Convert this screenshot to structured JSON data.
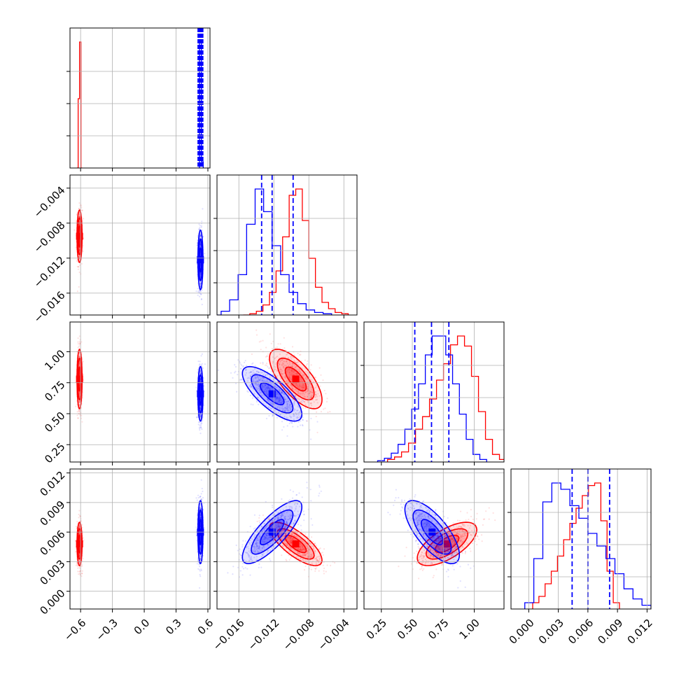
{
  "chart_data": {
    "type": "corner",
    "title": "",
    "grid": true,
    "parameters": [
      {
        "range": [
          -0.7,
          0.62
        ],
        "ticks": [
          -0.6,
          -0.3,
          0.0,
          0.3,
          0.6
        ],
        "tick_labels": [
          "−0.6",
          "−0.3",
          "0.0",
          "0.3",
          "0.6"
        ]
      },
      {
        "range": [
          -0.0185,
          -0.0025
        ],
        "ticks": [
          -0.016,
          -0.012,
          -0.008,
          -0.004
        ],
        "tick_labels": [
          "−0.016",
          "−0.012",
          "−0.008",
          "−0.004"
        ]
      },
      {
        "range": [
          0.11,
          1.24
        ],
        "ticks": [
          0.25,
          0.5,
          0.75,
          1.0
        ],
        "tick_labels": [
          "0.25",
          "0.50",
          "0.75",
          "1.00"
        ]
      },
      {
        "range": [
          -0.0018,
          0.0124
        ],
        "ticks": [
          0.0,
          0.003,
          0.006,
          0.009,
          0.012
        ],
        "tick_labels": [
          "0.000",
          "0.003",
          "0.006",
          "0.009",
          "0.012"
        ]
      }
    ],
    "series": [
      {
        "color": "#ff0000",
        "centers": [
          -0.61,
          -0.0095,
          0.78,
          0.0048
        ],
        "spreads": [
          0.012,
          0.0015,
          0.12,
          0.0011
        ],
        "correlations": {
          "0-1": 0.0,
          "0-2": 0.0,
          "0-3": 0.0,
          "1-2": -0.7,
          "1-3": -0.75,
          "2-3": 0.65
        },
        "histograms": [
          [
            0.0,
            0.55,
            1.0,
            0.0
          ],
          [
            0.0,
            0.01,
            0.03,
            0.08,
            0.18,
            0.35,
            0.62,
            0.95,
            1.0,
            0.75,
            0.45,
            0.22,
            0.1,
            0.05,
            0.02,
            0.01
          ],
          [
            0.02,
            0.04,
            0.08,
            0.15,
            0.26,
            0.36,
            0.5,
            0.65,
            0.78,
            0.93,
            1.0,
            0.92,
            0.68,
            0.4,
            0.18,
            0.06,
            0.02
          ],
          [
            0.05,
            0.1,
            0.2,
            0.3,
            0.42,
            0.55,
            0.68,
            0.8,
            0.9,
            0.98,
            1.0,
            0.7,
            0.3,
            0.05
          ]
        ]
      },
      {
        "color": "#0000ff",
        "centers": [
          0.53,
          -0.0122,
          0.66,
          0.006
        ],
        "spreads": [
          0.012,
          0.0017,
          0.11,
          0.0016
        ],
        "correlations": {
          "0-1": 0.0,
          "0-2": 0.0,
          "0-3": 0.0,
          "1-2": -0.75,
          "1-3": 0.8,
          "2-3": -0.72
        },
        "histograms": [
          [
            0.0,
            1.0,
            0.05
          ],
          [
            0.0,
            0.03,
            0.12,
            0.32,
            0.72,
            1.0,
            0.82,
            0.55,
            0.32,
            0.18,
            0.09,
            0.04,
            0.02,
            0.01
          ],
          [
            0.01,
            0.03,
            0.07,
            0.14,
            0.26,
            0.42,
            0.62,
            0.85,
            1.0,
            1.0,
            0.85,
            0.62,
            0.38,
            0.18,
            0.06,
            0.02
          ],
          [
            0.05,
            0.4,
            0.85,
            1.0,
            0.95,
            0.82,
            0.72,
            0.6,
            0.5,
            0.4,
            0.28,
            0.16,
            0.08,
            0.03
          ]
        ]
      }
    ],
    "quantile_lines": {
      "color": "#0000ff",
      "style": "dashed",
      "values": [
        [
          0.515,
          0.53,
          0.545
        ],
        [
          -0.0134,
          -0.0122,
          -0.0098
        ],
        [
          0.52,
          0.655,
          0.795
        ],
        [
          0.0044,
          0.006,
          0.0082
        ]
      ]
    }
  }
}
